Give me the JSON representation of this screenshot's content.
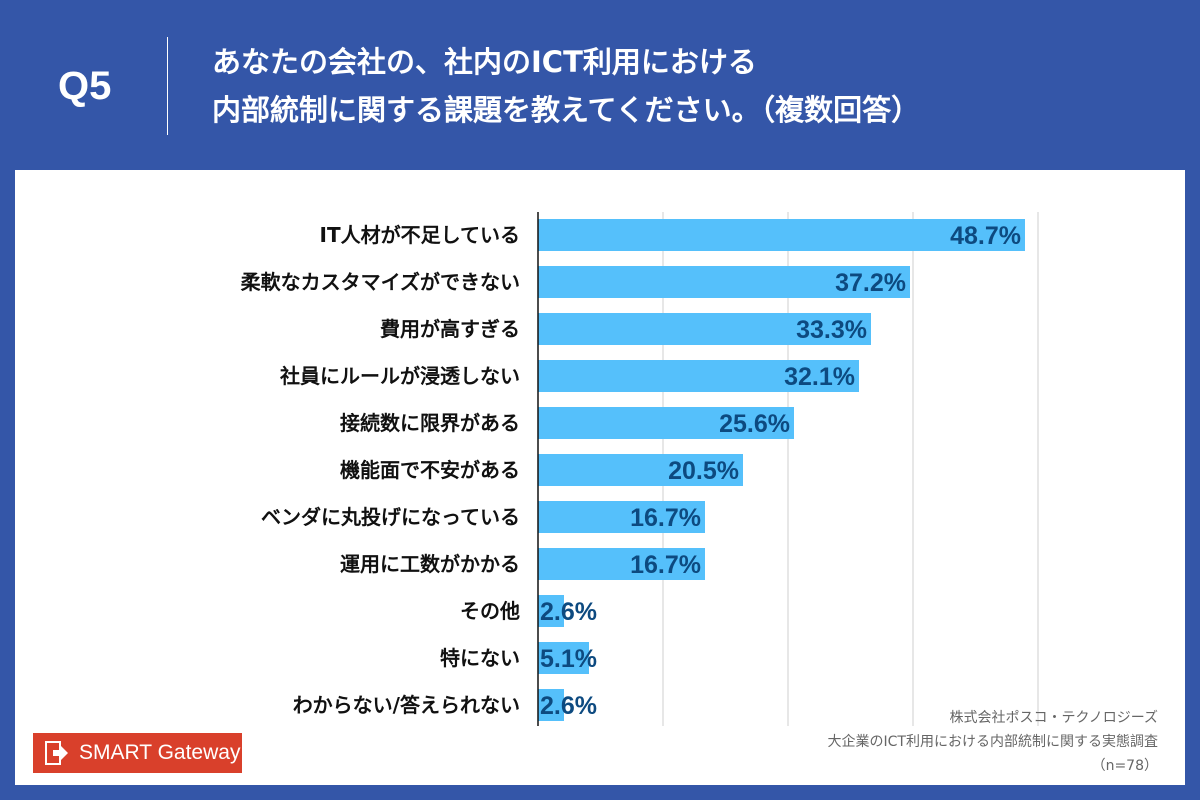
{
  "header": {
    "question": "Q5",
    "title_line1": "あなたの会社の、社内のICT利用における",
    "title_line2": "内部統制に関する課題を教えてください。（複数回答）"
  },
  "chart_data": {
    "type": "bar",
    "orientation": "horizontal",
    "categories": [
      "IT人材が不足している",
      "柔軟なカスタマイズができない",
      "費用が高すぎる",
      "社員にルールが浸透しない",
      "接続数に限界がある",
      "機能面で不安がある",
      "ベンダに丸投げになっている",
      "運用に工数がかかる",
      "その他",
      "特にない",
      "わからない/答えられない"
    ],
    "values": [
      48.7,
      37.2,
      33.3,
      32.1,
      25.6,
      20.5,
      16.7,
      16.7,
      2.6,
      5.1,
      2.6
    ],
    "data_labels": [
      "48.7%",
      "37.2%",
      "33.3%",
      "32.1%",
      "25.6%",
      "20.5%",
      "16.7%",
      "16.7%",
      "2.6%",
      "5.1%",
      "2.6%"
    ],
    "xlim": [
      0,
      50
    ],
    "gridlines": [
      12.5,
      25,
      37.5,
      50
    ],
    "grid": true,
    "colors": {
      "bar": "#55c0fb",
      "label": "#0d4a80"
    }
  },
  "source": {
    "company": "株式会社ポスコ・テクノロジーズ",
    "survey": "大企業のICT利用における内部統制に関する実態調査",
    "n": "（n=78）"
  },
  "logo": {
    "text": "SMART Gateway",
    "color": "#d9402b"
  }
}
